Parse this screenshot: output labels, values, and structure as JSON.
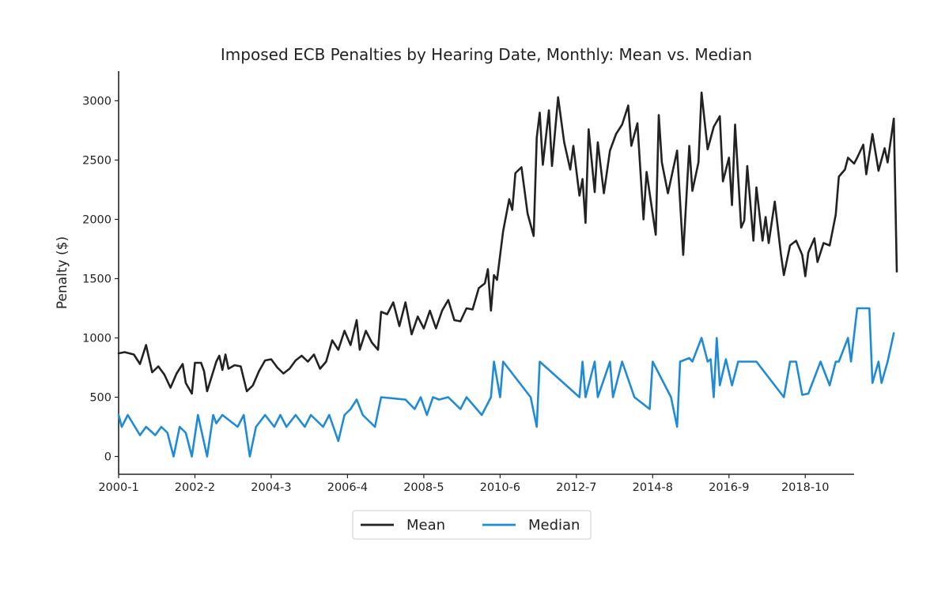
{
  "chart_data": {
    "type": "line",
    "title": "Imposed ECB Penalties by Hearing Date, Monthly: Mean vs. Median",
    "xlabel": "",
    "ylabel": "Penalty ($)",
    "x_start": "2000-1",
    "x_end": "2020-2",
    "x_ticks": [
      "2000-1",
      "2002-2",
      "2004-3",
      "2006-4",
      "2008-5",
      "2010-6",
      "2012-7",
      "2014-8",
      "2016-9",
      "2018-10"
    ],
    "y_ticks": [
      0,
      500,
      1000,
      1500,
      2000,
      2500,
      3000
    ],
    "ylim": [
      -150,
      3250
    ],
    "grid": false,
    "legend_position": "bottom-center",
    "series": [
      {
        "name": "Mean",
        "color": "#222222",
        "points": [
          [
            "2000-1",
            870
          ],
          [
            "2000-3",
            880
          ],
          [
            "2000-6",
            860
          ],
          [
            "2000-8",
            780
          ],
          [
            "2000-10",
            940
          ],
          [
            "2000-12",
            710
          ],
          [
            "2001-2",
            760
          ],
          [
            "2001-4",
            690
          ],
          [
            "2001-6",
            580
          ],
          [
            "2001-8",
            700
          ],
          [
            "2001-10",
            780
          ],
          [
            "2001-11",
            620
          ],
          [
            "2002-1",
            530
          ],
          [
            "2002-2",
            790
          ],
          [
            "2002-4",
            790
          ],
          [
            "2002-5",
            720
          ],
          [
            "2002-6",
            550
          ],
          [
            "2002-9",
            800
          ],
          [
            "2002-10",
            850
          ],
          [
            "2002-11",
            730
          ],
          [
            "2002-12",
            860
          ],
          [
            "2003-1",
            740
          ],
          [
            "2003-3",
            770
          ],
          [
            "2003-5",
            760
          ],
          [
            "2003-7",
            550
          ],
          [
            "2003-9",
            600
          ],
          [
            "2003-11",
            720
          ],
          [
            "2004-1",
            810
          ],
          [
            "2004-3",
            820
          ],
          [
            "2004-5",
            750
          ],
          [
            "2004-7",
            700
          ],
          [
            "2004-9",
            740
          ],
          [
            "2004-11",
            810
          ],
          [
            "2005-1",
            850
          ],
          [
            "2005-3",
            800
          ],
          [
            "2005-5",
            860
          ],
          [
            "2005-7",
            740
          ],
          [
            "2005-9",
            800
          ],
          [
            "2005-11",
            980
          ],
          [
            "2006-1",
            900
          ],
          [
            "2006-3",
            1060
          ],
          [
            "2006-5",
            940
          ],
          [
            "2006-7",
            1150
          ],
          [
            "2006-8",
            900
          ],
          [
            "2006-10",
            1060
          ],
          [
            "2006-12",
            960
          ],
          [
            "2007-2",
            900
          ],
          [
            "2007-3",
            1220
          ],
          [
            "2007-5",
            1200
          ],
          [
            "2007-7",
            1300
          ],
          [
            "2007-9",
            1100
          ],
          [
            "2007-11",
            1300
          ],
          [
            "2008-1",
            1030
          ],
          [
            "2008-3",
            1180
          ],
          [
            "2008-5",
            1080
          ],
          [
            "2008-7",
            1230
          ],
          [
            "2008-9",
            1080
          ],
          [
            "2008-11",
            1230
          ],
          [
            "2009-1",
            1320
          ],
          [
            "2009-3",
            1150
          ],
          [
            "2009-5",
            1140
          ],
          [
            "2009-7",
            1250
          ],
          [
            "2009-9",
            1240
          ],
          [
            "2009-11",
            1420
          ],
          [
            "2010-1",
            1460
          ],
          [
            "2010-2",
            1580
          ],
          [
            "2010-3",
            1230
          ],
          [
            "2010-4",
            1530
          ],
          [
            "2010-5",
            1490
          ],
          [
            "2010-7",
            1900
          ],
          [
            "2010-9",
            2170
          ],
          [
            "2010-10",
            2080
          ],
          [
            "2010-11",
            2390
          ],
          [
            "2011-1",
            2440
          ],
          [
            "2011-3",
            2050
          ],
          [
            "2011-5",
            1860
          ],
          [
            "2011-6",
            2690
          ],
          [
            "2011-7",
            2900
          ],
          [
            "2011-8",
            2460
          ],
          [
            "2011-10",
            2920
          ],
          [
            "2011-11",
            2450
          ],
          [
            "2012-1",
            3030
          ],
          [
            "2012-3",
            2650
          ],
          [
            "2012-5",
            2420
          ],
          [
            "2012-6",
            2620
          ],
          [
            "2012-8",
            2200
          ],
          [
            "2012-9",
            2340
          ],
          [
            "2012-10",
            1970
          ],
          [
            "2012-11",
            2760
          ],
          [
            "2013-1",
            2230
          ],
          [
            "2013-2",
            2650
          ],
          [
            "2013-4",
            2220
          ],
          [
            "2013-6",
            2580
          ],
          [
            "2013-8",
            2720
          ],
          [
            "2013-10",
            2800
          ],
          [
            "2013-12",
            2960
          ],
          [
            "2014-1",
            2620
          ],
          [
            "2014-3",
            2810
          ],
          [
            "2014-5",
            2000
          ],
          [
            "2014-6",
            2400
          ],
          [
            "2014-7",
            2220
          ],
          [
            "2014-9",
            1870
          ],
          [
            "2014-10",
            2880
          ],
          [
            "2014-11",
            2480
          ],
          [
            "2015-1",
            2220
          ],
          [
            "2015-4",
            2580
          ],
          [
            "2015-6",
            1700
          ],
          [
            "2015-8",
            2620
          ],
          [
            "2015-9",
            2240
          ],
          [
            "2015-11",
            2480
          ],
          [
            "2015-12",
            3070
          ],
          [
            "2016-2",
            2590
          ],
          [
            "2016-4",
            2780
          ],
          [
            "2016-6",
            2870
          ],
          [
            "2016-7",
            2320
          ],
          [
            "2016-9",
            2520
          ],
          [
            "2016-10",
            2120
          ],
          [
            "2016-11",
            2800
          ],
          [
            "2017-1",
            1930
          ],
          [
            "2017-2",
            1990
          ],
          [
            "2017-3",
            2450
          ],
          [
            "2017-5",
            1820
          ],
          [
            "2017-6",
            2270
          ],
          [
            "2017-8",
            1820
          ],
          [
            "2017-9",
            2020
          ],
          [
            "2017-10",
            1800
          ],
          [
            "2017-12",
            2150
          ],
          [
            "2018-2",
            1710
          ],
          [
            "2018-3",
            1530
          ],
          [
            "2018-5",
            1780
          ],
          [
            "2018-7",
            1820
          ],
          [
            "2018-9",
            1700
          ],
          [
            "2018-10",
            1520
          ],
          [
            "2018-11",
            1720
          ],
          [
            "2019-1",
            1840
          ],
          [
            "2019-2",
            1640
          ],
          [
            "2019-4",
            1800
          ],
          [
            "2019-6",
            1780
          ],
          [
            "2019-8",
            2040
          ],
          [
            "2019-9",
            2360
          ],
          [
            "2019-11",
            2420
          ],
          [
            "2019-12",
            2520
          ],
          [
            "2020-2",
            2470
          ],
          [
            "2020-3",
            2520
          ],
          [
            "2020-5",
            2630
          ],
          [
            "2020-6",
            2380
          ],
          [
            "2020-8",
            2720
          ],
          [
            "2020-10",
            2410
          ],
          [
            "2020-12",
            2600
          ],
          [
            "2021-1",
            2480
          ],
          [
            "2021-3",
            2850
          ],
          [
            "2021-4",
            1560
          ]
        ]
      },
      {
        "name": "Median",
        "color": "#1f8bd6",
        "points": [
          [
            "2000-1",
            350
          ],
          [
            "2000-2",
            250
          ],
          [
            "2000-4",
            350
          ],
          [
            "2000-8",
            180
          ],
          [
            "2000-10",
            250
          ],
          [
            "2001-1",
            180
          ],
          [
            "2001-3",
            250
          ],
          [
            "2001-5",
            200
          ],
          [
            "2001-7",
            0
          ],
          [
            "2001-9",
            250
          ],
          [
            "2001-11",
            200
          ],
          [
            "2002-1",
            0
          ],
          [
            "2002-3",
            350
          ],
          [
            "2002-6",
            0
          ],
          [
            "2002-8",
            350
          ],
          [
            "2002-9",
            280
          ],
          [
            "2002-11",
            350
          ],
          [
            "2003-4",
            250
          ],
          [
            "2003-6",
            350
          ],
          [
            "2003-8",
            0
          ],
          [
            "2003-10",
            250
          ],
          [
            "2004-1",
            350
          ],
          [
            "2004-4",
            250
          ],
          [
            "2004-6",
            350
          ],
          [
            "2004-8",
            250
          ],
          [
            "2004-11",
            350
          ],
          [
            "2005-2",
            250
          ],
          [
            "2005-4",
            350
          ],
          [
            "2005-8",
            250
          ],
          [
            "2005-10",
            350
          ],
          [
            "2006-1",
            130
          ],
          [
            "2006-3",
            350
          ],
          [
            "2006-5",
            400
          ],
          [
            "2006-7",
            480
          ],
          [
            "2006-9",
            350
          ],
          [
            "2007-1",
            250
          ],
          [
            "2007-3",
            500
          ],
          [
            "2007-11",
            480
          ],
          [
            "2008-2",
            400
          ],
          [
            "2008-4",
            500
          ],
          [
            "2008-6",
            350
          ],
          [
            "2008-8",
            500
          ],
          [
            "2008-10",
            480
          ],
          [
            "2009-1",
            500
          ],
          [
            "2009-5",
            400
          ],
          [
            "2009-7",
            500
          ],
          [
            "2009-12",
            350
          ],
          [
            "2010-3",
            500
          ],
          [
            "2010-4",
            800
          ],
          [
            "2010-6",
            500
          ],
          [
            "2010-7",
            800
          ],
          [
            "2011-4",
            500
          ],
          [
            "2011-6",
            250
          ],
          [
            "2011-7",
            800
          ],
          [
            "2012-8",
            500
          ],
          [
            "2012-9",
            800
          ],
          [
            "2012-10",
            500
          ],
          [
            "2013-1",
            800
          ],
          [
            "2013-2",
            500
          ],
          [
            "2013-6",
            800
          ],
          [
            "2013-7",
            500
          ],
          [
            "2013-10",
            800
          ],
          [
            "2014-2",
            500
          ],
          [
            "2014-7",
            400
          ],
          [
            "2014-8",
            800
          ],
          [
            "2015-2",
            500
          ],
          [
            "2015-4",
            250
          ],
          [
            "2015-5",
            800
          ],
          [
            "2015-8",
            830
          ],
          [
            "2015-9",
            800
          ],
          [
            "2015-12",
            1000
          ],
          [
            "2016-2",
            800
          ],
          [
            "2016-3",
            820
          ],
          [
            "2016-4",
            500
          ],
          [
            "2016-5",
            1000
          ],
          [
            "2016-6",
            600
          ],
          [
            "2016-8",
            820
          ],
          [
            "2016-10",
            600
          ],
          [
            "2016-12",
            800
          ],
          [
            "2017-3",
            800
          ],
          [
            "2017-6",
            800
          ],
          [
            "2018-3",
            500
          ],
          [
            "2018-5",
            800
          ],
          [
            "2018-7",
            800
          ],
          [
            "2018-9",
            520
          ],
          [
            "2018-11",
            530
          ],
          [
            "2019-3",
            800
          ],
          [
            "2019-6",
            600
          ],
          [
            "2019-8",
            800
          ],
          [
            "2019-9",
            800
          ],
          [
            "2019-12",
            1000
          ],
          [
            "2020-1",
            800
          ],
          [
            "2020-3",
            1250
          ],
          [
            "2020-7",
            1250
          ],
          [
            "2020-8",
            620
          ],
          [
            "2020-10",
            800
          ],
          [
            "2020-11",
            620
          ],
          [
            "2021-1",
            800
          ],
          [
            "2021-3",
            1040
          ]
        ]
      }
    ]
  }
}
